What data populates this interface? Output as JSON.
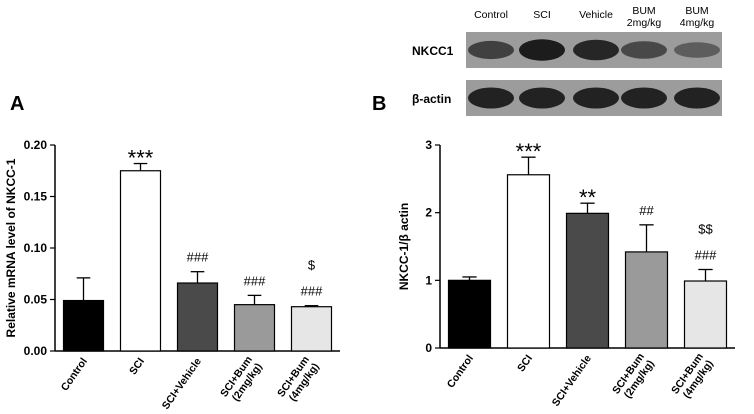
{
  "panel_a": {
    "letter": "A"
  },
  "panel_b": {
    "letter": "B"
  },
  "western_blot": {
    "lanes": [
      "Control",
      "SCI",
      "Vehicle",
      "BUM\n2mg/kg",
      "BUM\n4mg/kg"
    ],
    "rows": [
      {
        "label": "NKCC1",
        "intensity": [
          0.62,
          0.95,
          0.85,
          0.55,
          0.35
        ]
      },
      {
        "label": "β-actin",
        "intensity": [
          0.9,
          0.9,
          0.9,
          0.9,
          0.9
        ]
      }
    ]
  },
  "colors": {
    "Control": "#000000",
    "SCI": "#ffffff",
    "SCI+Vehicle": "#4a4a4a",
    "SCI+Bum (2mg/kg)": "#9a9a9a",
    "SCI+Bum (4mg/kg)": "#e6e6e6"
  },
  "chart_data": [
    {
      "type": "bar",
      "categories": [
        "Control",
        "SCI",
        "SCI+Vehicle",
        "SCI+Bum\n(2mg/kg)",
        "SCI+Bum\n(4mg/kg)"
      ],
      "values": [
        0.049,
        0.175,
        0.066,
        0.045,
        0.043
      ],
      "errors": [
        0.022,
        0.007,
        0.011,
        0.009,
        0.001
      ],
      "annotations": [
        "",
        "***",
        "###",
        "###",
        "$\n###"
      ],
      "ylabel": "Relative mRNA level of NKCC-1",
      "ylim": [
        0,
        0.2
      ],
      "yticks": [
        "0.00",
        "0.05",
        "0.10",
        "0.15",
        "0.20"
      ],
      "grid": false
    },
    {
      "type": "bar",
      "categories": [
        "Control",
        "SCI",
        "SCI+Vehicle",
        "SCI+Bum\n(2mg/kg)",
        "SCI+Bum\n(4mg/kg)"
      ],
      "values": [
        1.0,
        2.56,
        1.99,
        1.42,
        0.99
      ],
      "errors": [
        0.05,
        0.26,
        0.15,
        0.4,
        0.17
      ],
      "annotations": [
        "",
        "***",
        "**",
        "##",
        "$$\n###"
      ],
      "ylabel": "NKCC-1/β actin",
      "ylim": [
        0,
        3
      ],
      "yticks": [
        "0",
        "1",
        "2",
        "3"
      ],
      "grid": false
    }
  ]
}
